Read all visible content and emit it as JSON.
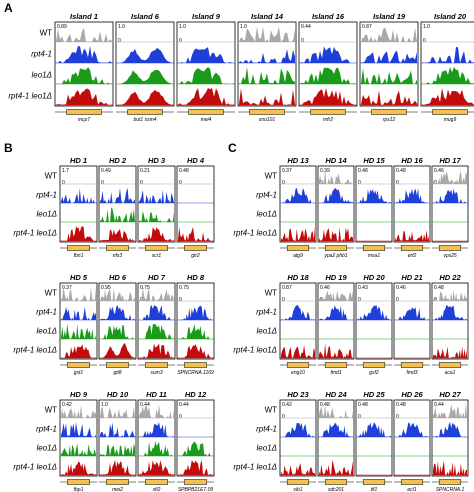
{
  "colors": {
    "WT": "#a9a9a9",
    "rpt4-1": "#1f3fd9",
    "leo1Δ": "#1a9c1a",
    "rpt4-1 leo1Δ": "#c40b0b",
    "gene": "#f2c14e",
    "gene_alt": "#58b26b"
  },
  "tracks": [
    "WT",
    "rpt4-1",
    "leo1Δ",
    "rpt4-1 leo1Δ"
  ],
  "panels": [
    {
      "letter": "A",
      "loci": [
        {
          "title": "Island 1",
          "scale": "0.89",
          "gene": "mcp7"
        },
        {
          "title": "Island 6",
          "scale": "1.0",
          "gene": "but1   ssm4"
        },
        {
          "title": "Island 9",
          "scale": "1.0",
          "gene": "mei4"
        },
        {
          "title": "Island 14",
          "scale": "1.0",
          "gene": "sno101"
        },
        {
          "title": "Island 16",
          "scale": "0.44",
          "gene": "mfr2"
        },
        {
          "title": "Island 19",
          "scale": "0.87",
          "gene": "rps12"
        },
        {
          "title": "Island 20",
          "scale": "1.0",
          "gene": "mug9"
        }
      ]
    },
    {
      "letter": "B",
      "rows": [
        [
          {
            "title": "HD 1",
            "scale": "1.7",
            "gene": "fbn1"
          },
          {
            "title": "HD 2",
            "scale": "0.49",
            "gene": "nfs3"
          },
          {
            "title": "HD 3",
            "scale": "0.21",
            "gene": "scr1"
          },
          {
            "title": "HD 4",
            "scale": "0.48",
            "gene": "gtr2"
          }
        ],
        [
          {
            "title": "HD 5",
            "scale": "0.37",
            "gene": "gst1"
          },
          {
            "title": "HD 6",
            "scale": "0.95",
            "gene": "gti8"
          },
          {
            "title": "HD 7",
            "scale": "0.75",
            "gene": "sum3"
          },
          {
            "title": "HD 8",
            "scale": "0.75",
            "gene": "SPNCRNA.1169"
          }
        ],
        [
          {
            "title": "HD 9",
            "scale": "0.42",
            "gene": "fbp1"
          },
          {
            "title": "HD 10",
            "scale": "1.0",
            "gene": "mei2"
          },
          {
            "title": "HD 11",
            "scale": "0.44",
            "gene": "sfi2"
          },
          {
            "title": "HD 12",
            "scale": "0.44",
            "gene": "SPBPB21E7.09"
          }
        ]
      ]
    },
    {
      "letter": "C",
      "rows": [
        [
          {
            "title": "HD 13",
            "scale": "0.37",
            "gene": "atg9"
          },
          {
            "title": "HD 14",
            "scale": "0.39",
            "gene": "ypa2   phb1"
          },
          {
            "title": "HD 15",
            "scale": "0.48",
            "gene": "msa1"
          },
          {
            "title": "HD 16",
            "scale": "0.48",
            "gene": "erf2"
          },
          {
            "title": "HD 17",
            "scale": "0.46",
            "gene": "vps25"
          }
        ],
        [
          {
            "title": "HD 18",
            "scale": "0.87",
            "gene": "eng10"
          },
          {
            "title": "HD 19",
            "scale": "0.46",
            "gene": "fmd1"
          },
          {
            "title": "HD 20",
            "scale": "0.43",
            "gene": "gsf2"
          },
          {
            "title": "HD 21",
            "scale": "0.46",
            "gene": "fmd3"
          },
          {
            "title": "HD 22",
            "scale": "0.48",
            "gene": "aca1"
          }
        ],
        [
          {
            "title": "HD 23",
            "scale": "0.42",
            "gene": "sib1"
          },
          {
            "title": "HD 24",
            "scale": "0.48",
            "gene": "sdc201"
          },
          {
            "title": "HD 25",
            "scale": "0.48",
            "gene": "tif1"
          },
          {
            "title": "HD 26",
            "scale": "0.48",
            "gene": "ecl1"
          },
          {
            "title": "HD 27",
            "scale": "0.44",
            "gene": "SPNCRNA.1"
          }
        ]
      ]
    }
  ]
}
